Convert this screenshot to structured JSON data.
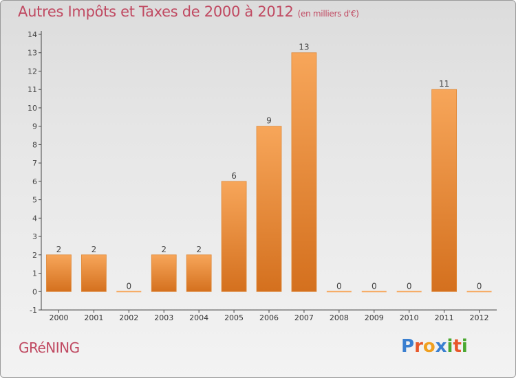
{
  "header": {
    "title": "Autres Impôts et Taxes de 2000 à 2012",
    "unit": "(en milliers d'€)"
  },
  "commune": "GRéNING",
  "logo": {
    "text": "Proxiti",
    "letters": [
      {
        "ch": "P",
        "color": "#3a7fd0"
      },
      {
        "ch": "r",
        "color": "#e8572a"
      },
      {
        "ch": "o",
        "color": "#f0a020"
      },
      {
        "ch": "x",
        "color": "#3a7fd0"
      },
      {
        "ch": "i",
        "color": "#4aa830"
      },
      {
        "ch": "t",
        "color": "#e8572a"
      },
      {
        "ch": "i",
        "color": "#4aa830"
      }
    ]
  },
  "chart_data": {
    "type": "bar",
    "title": "Autres Impôts et Taxes de 2000 à 2012",
    "subtitle": "(en milliers d'€)",
    "categories": [
      "2000",
      "2001",
      "2002",
      "2003",
      "2004",
      "2005",
      "2006",
      "2007",
      "2008",
      "2009",
      "2010",
      "2011",
      "2012"
    ],
    "values": [
      2,
      2,
      0,
      2,
      2,
      6,
      9,
      13,
      0,
      0,
      0,
      11,
      0
    ],
    "ylim": [
      -1,
      14
    ],
    "yticks": [
      -1,
      0,
      1,
      2,
      3,
      4,
      5,
      6,
      7,
      8,
      9,
      10,
      11,
      12,
      13,
      14
    ],
    "grid": false,
    "bar_color_top": "#f7a65a",
    "bar_color_bottom": "#d4701e",
    "axis_color": "#444444"
  }
}
